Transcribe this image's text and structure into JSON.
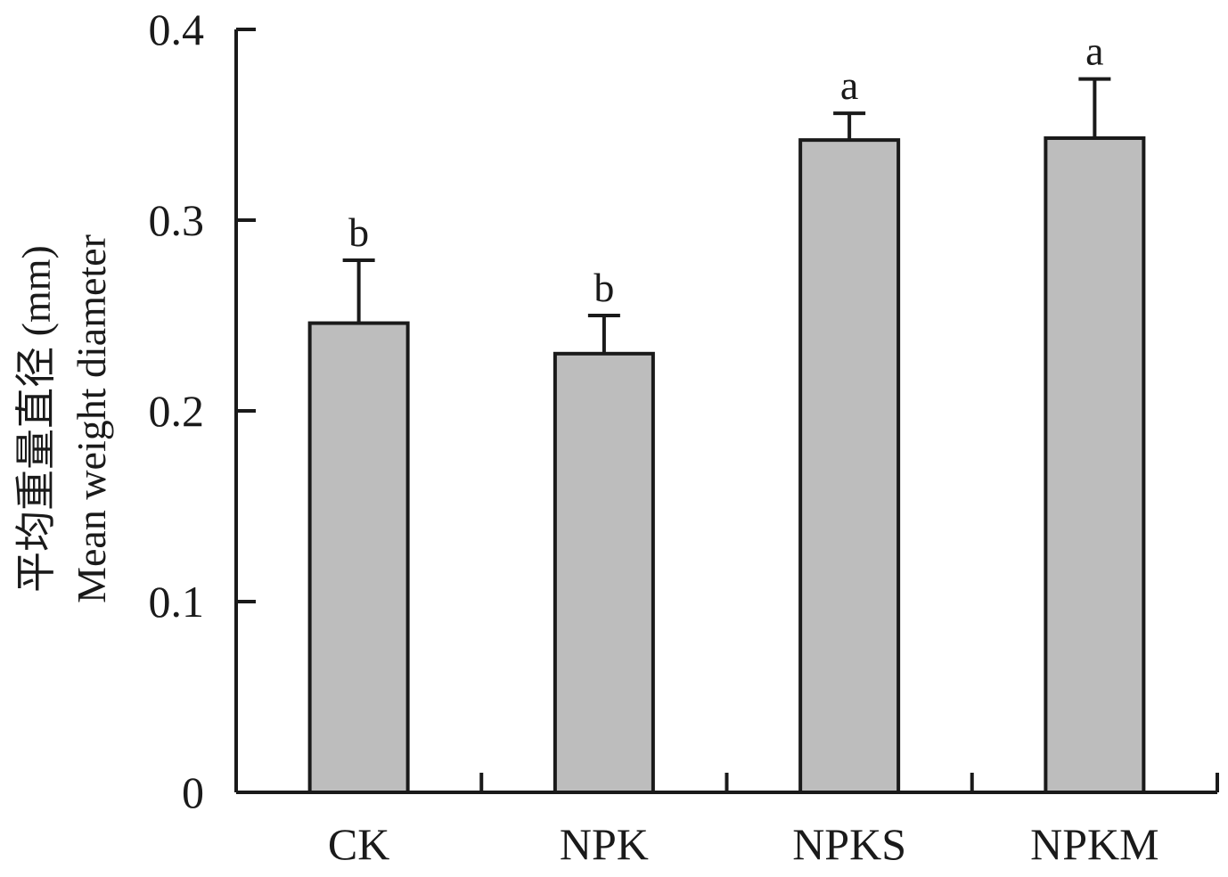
{
  "chart_data": {
    "type": "bar",
    "categories": [
      "CK",
      "NPK",
      "NPKS",
      "NPKM"
    ],
    "values": [
      0.246,
      0.23,
      0.342,
      0.343
    ],
    "errors": [
      0.033,
      0.02,
      0.014,
      0.031
    ],
    "significance": [
      "b",
      "b",
      "a",
      "a"
    ],
    "ylabel_zh": "平均重量直径 (mm)",
    "ylabel_en": "Mean weight diameter",
    "ylim": [
      0,
      0.4
    ],
    "yticks": [
      0,
      0.1,
      0.2,
      0.3,
      0.4
    ],
    "ytick_labels": [
      "0",
      "0.1",
      "0.2",
      "0.3",
      "0.4"
    ],
    "bar_color": "#bdbdbd",
    "grid": false
  }
}
